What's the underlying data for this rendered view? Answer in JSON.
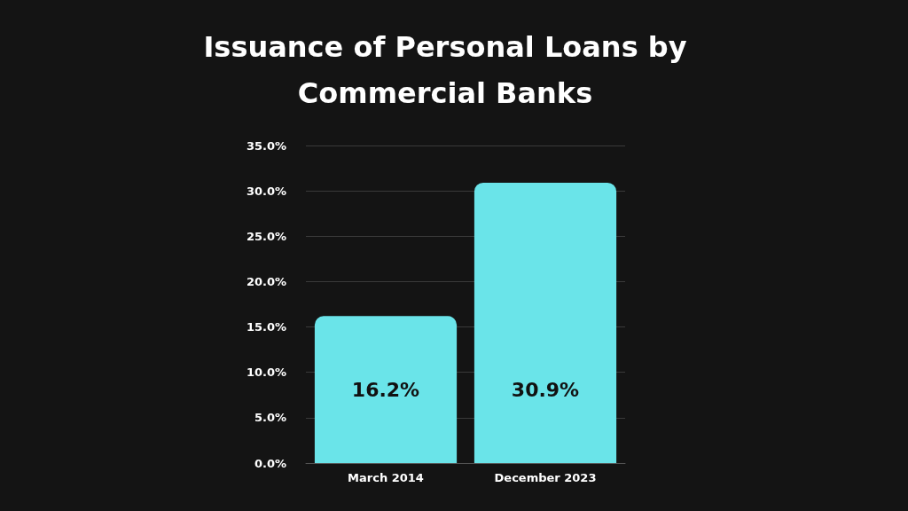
{
  "chart_data": {
    "type": "bar",
    "title": "Issuance of Personal Loans by\nCommercial Banks",
    "categories": [
      "March 2014",
      "December 2023"
    ],
    "values": [
      16.2,
      30.9
    ],
    "value_labels": [
      "16.2%",
      "30.9%"
    ],
    "color": "#6ae4e9",
    "ylim": [
      0,
      35
    ],
    "yticks": [
      {
        "value": 0,
        "label": "0.0%"
      },
      {
        "value": 5,
        "label": "5.0%"
      },
      {
        "value": 10,
        "label": "10.0%"
      },
      {
        "value": 15,
        "label": "15.0%"
      },
      {
        "value": 20,
        "label": "20.0%"
      },
      {
        "value": 25,
        "label": "25.0%"
      },
      {
        "value": 30,
        "label": "30.0%"
      },
      {
        "value": 35,
        "label": "35.0%"
      }
    ],
    "grid": "y"
  }
}
